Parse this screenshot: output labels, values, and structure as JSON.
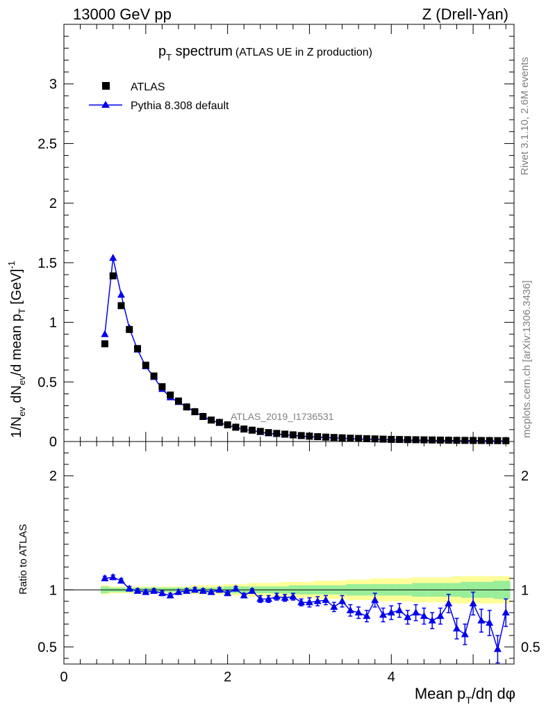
{
  "header": {
    "left": "13000 GeV pp",
    "right": "Z (Drell-Yan)"
  },
  "title": {
    "main": "p",
    "main_sub": "T",
    "main_rest": " spectrum",
    "extra": "(ATLAS UE in Z production)"
  },
  "side_labels": {
    "rivet": "Rivet 3.1.10,  2.6M events",
    "mcplots": "mcplots.cern.ch [arXiv:1306.3436]"
  },
  "analysis_id": "ATLAS_2019_I1736531",
  "colors": {
    "data": "#000000",
    "mc": "#0000ee",
    "band_inner": "#99ee99",
    "band_outer": "#ffff99",
    "side_text": "#808080"
  },
  "chart_data": [
    {
      "type": "scatter",
      "panel": "main",
      "ylabel": "1/N_ev dN_ev/d mean p_T [GeV]^-1",
      "ylim": [
        0,
        3.5
      ],
      "xlim": [
        0,
        5.5
      ],
      "yticks": [
        "0",
        "0.5",
        "1",
        "1.5",
        "2",
        "2.5",
        "3"
      ],
      "ytick_values": [
        0,
        0.5,
        1,
        1.5,
        2,
        2.5,
        3
      ],
      "legend": [
        "ATLAS",
        "Pythia 8.308 default"
      ],
      "x": [
        0.5,
        0.6,
        0.7,
        0.8,
        0.9,
        1.0,
        1.1,
        1.2,
        1.3,
        1.4,
        1.5,
        1.6,
        1.7,
        1.8,
        1.9,
        2.0,
        2.1,
        2.2,
        2.3,
        2.4,
        2.5,
        2.6,
        2.7,
        2.8,
        2.9,
        3.0,
        3.1,
        3.2,
        3.3,
        3.4,
        3.5,
        3.6,
        3.7,
        3.8,
        3.9,
        4.0,
        4.1,
        4.2,
        4.3,
        4.4,
        4.5,
        4.6,
        4.7,
        4.8,
        4.9,
        5.0,
        5.1,
        5.2,
        5.3,
        5.4
      ],
      "series": [
        {
          "name": "ATLAS",
          "values": [
            0.82,
            1.39,
            1.14,
            0.94,
            0.78,
            0.64,
            0.55,
            0.46,
            0.39,
            0.34,
            0.29,
            0.25,
            0.21,
            0.18,
            0.16,
            0.14,
            0.12,
            0.105,
            0.095,
            0.085,
            0.075,
            0.068,
            0.062,
            0.056,
            0.05,
            0.045,
            0.041,
            0.037,
            0.034,
            0.031,
            0.028,
            0.026,
            0.024,
            0.022,
            0.02,
            0.018,
            0.017,
            0.016,
            0.015,
            0.014,
            0.013,
            0.012,
            0.011,
            0.01,
            0.0095,
            0.009,
            0.0085,
            0.008,
            0.0075,
            0.007
          ]
        },
        {
          "name": "Pythia 8.308 default",
          "values": [
            0.9,
            1.54,
            1.23,
            0.95,
            0.77,
            0.63,
            0.54,
            0.44,
            0.37,
            0.33,
            0.29,
            0.25,
            0.21,
            0.175,
            0.16,
            0.135,
            0.12,
            0.1,
            0.094,
            0.078,
            0.068,
            0.063,
            0.057,
            0.052,
            0.045,
            0.04,
            0.037,
            0.034,
            0.029,
            0.028,
            0.023,
            0.021,
            0.019,
            0.02,
            0.016,
            0.015,
            0.014,
            0.012,
            0.012,
            0.011,
            0.009,
            0.009,
            0.0095,
            0.0066,
            0.0058,
            0.0079,
            0.0062,
            0.0056,
            0.0036,
            0.0056
          ]
        }
      ]
    },
    {
      "type": "line",
      "panel": "ratio",
      "ylabel": "Ratio to ATLAS",
      "xlabel": "Mean p_T/dη dφ",
      "ylim": [
        0.35,
        2.3
      ],
      "xlim": [
        0,
        5.5
      ],
      "xticks": [
        "0",
        "2",
        "4"
      ],
      "xtick_values": [
        0,
        2,
        4
      ],
      "yticks": [
        "0.5",
        "1",
        "2"
      ],
      "ytick_values": [
        0.5,
        1,
        2
      ],
      "x": [
        0.5,
        0.6,
        0.7,
        0.8,
        0.9,
        1.0,
        1.1,
        1.2,
        1.3,
        1.4,
        1.5,
        1.6,
        1.7,
        1.8,
        1.9,
        2.0,
        2.1,
        2.2,
        2.3,
        2.4,
        2.5,
        2.6,
        2.7,
        2.8,
        2.9,
        3.0,
        3.1,
        3.2,
        3.3,
        3.4,
        3.5,
        3.6,
        3.7,
        3.8,
        3.9,
        4.0,
        4.1,
        4.2,
        4.3,
        4.4,
        4.5,
        4.6,
        4.7,
        4.8,
        4.9,
        5.0,
        5.1,
        5.2,
        5.3,
        5.4
      ],
      "ratio": [
        1.1,
        1.11,
        1.08,
        1.01,
        0.99,
        0.98,
        0.99,
        0.97,
        0.95,
        0.98,
        0.99,
        1.0,
        0.99,
        0.98,
        1.0,
        0.97,
        1.01,
        0.95,
        0.99,
        0.92,
        0.92,
        0.94,
        0.93,
        0.94,
        0.89,
        0.89,
        0.9,
        0.91,
        0.85,
        0.9,
        0.82,
        0.8,
        0.77,
        0.91,
        0.78,
        0.8,
        0.82,
        0.76,
        0.8,
        0.77,
        0.73,
        0.77,
        0.88,
        0.66,
        0.61,
        0.88,
        0.73,
        0.71,
        0.48,
        0.8
      ],
      "ratio_err": [
        0.02,
        0.02,
        0.02,
        0.02,
        0.02,
        0.02,
        0.02,
        0.02,
        0.02,
        0.02,
        0.02,
        0.02,
        0.02,
        0.02,
        0.02,
        0.02,
        0.02,
        0.02,
        0.02,
        0.03,
        0.03,
        0.03,
        0.03,
        0.03,
        0.03,
        0.04,
        0.04,
        0.04,
        0.04,
        0.05,
        0.05,
        0.05,
        0.05,
        0.06,
        0.06,
        0.06,
        0.06,
        0.06,
        0.07,
        0.07,
        0.07,
        0.07,
        0.08,
        0.09,
        0.09,
        0.1,
        0.1,
        0.11,
        0.12,
        0.12
      ],
      "band_inner": [
        0.03,
        0.02,
        0.02,
        0.02,
        0.02,
        0.02,
        0.02,
        0.02,
        0.02,
        0.02,
        0.02,
        0.02,
        0.02,
        0.02,
        0.02,
        0.03,
        0.03,
        0.03,
        0.03,
        0.03,
        0.03,
        0.03,
        0.03,
        0.04,
        0.04,
        0.04,
        0.04,
        0.04,
        0.04,
        0.04,
        0.05,
        0.05,
        0.05,
        0.05,
        0.05,
        0.05,
        0.05,
        0.05,
        0.06,
        0.06,
        0.06,
        0.06,
        0.06,
        0.06,
        0.07,
        0.07,
        0.07,
        0.07,
        0.08,
        0.08
      ],
      "band_outer": [
        0.04,
        0.03,
        0.03,
        0.03,
        0.03,
        0.03,
        0.03,
        0.03,
        0.03,
        0.03,
        0.03,
        0.04,
        0.04,
        0.04,
        0.04,
        0.05,
        0.05,
        0.05,
        0.06,
        0.06,
        0.06,
        0.06,
        0.07,
        0.07,
        0.07,
        0.07,
        0.08,
        0.08,
        0.08,
        0.08,
        0.09,
        0.09,
        0.09,
        0.1,
        0.1,
        0.1,
        0.1,
        0.1,
        0.11,
        0.11,
        0.11,
        0.11,
        0.11,
        0.12,
        0.12,
        0.12,
        0.12,
        0.12,
        0.12,
        0.12
      ]
    }
  ]
}
